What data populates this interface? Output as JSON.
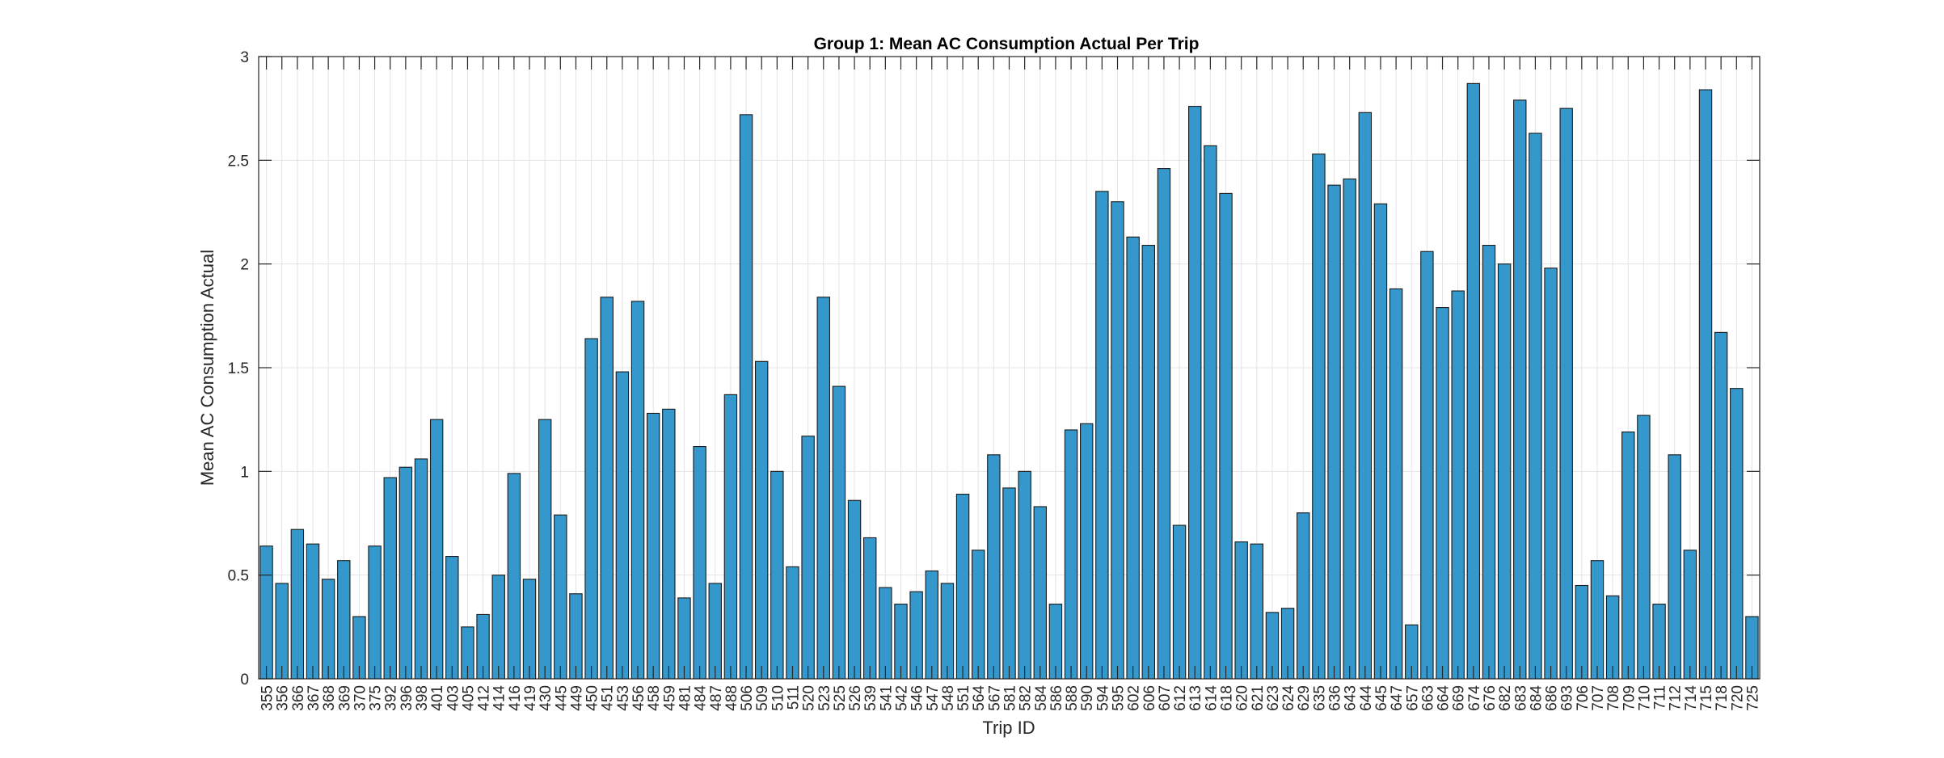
{
  "chart_data": {
    "type": "bar",
    "title": "Group 1: Mean AC Consumption Actual Per Trip",
    "xlabel": "Trip ID",
    "ylabel": "Mean AC Consumption Actual",
    "ylim": [
      0,
      3
    ],
    "yticks": [
      "0",
      "0.5",
      "1",
      "1.5",
      "2",
      "2.5",
      "3"
    ],
    "grid": true,
    "legend": "none",
    "colors": {
      "bar_fill": "#3498cd",
      "bar_edge": "#1a1a1a",
      "grid": "#e3e3e3",
      "axis": "#262626"
    },
    "categories": [
      "355",
      "356",
      "366",
      "367",
      "368",
      "369",
      "370",
      "375",
      "392",
      "396",
      "398",
      "401",
      "403",
      "405",
      "412",
      "414",
      "416",
      "419",
      "430",
      "445",
      "449",
      "450",
      "451",
      "453",
      "456",
      "458",
      "459",
      "481",
      "484",
      "487",
      "488",
      "506",
      "509",
      "510",
      "511",
      "520",
      "523",
      "525",
      "526",
      "539",
      "541",
      "542",
      "546",
      "547",
      "548",
      "551",
      "564",
      "567",
      "581",
      "582",
      "584",
      "586",
      "588",
      "590",
      "594",
      "595",
      "602",
      "606",
      "607",
      "612",
      "613",
      "614",
      "618",
      "620",
      "621",
      "623",
      "624",
      "629",
      "635",
      "636",
      "643",
      "644",
      "645",
      "647",
      "657",
      "663",
      "664",
      "669",
      "674",
      "676",
      "682",
      "683",
      "684",
      "686",
      "693",
      "706",
      "707",
      "708",
      "709",
      "710",
      "711",
      "712",
      "714",
      "715",
      "718",
      "720",
      "725"
    ],
    "values": [
      0.64,
      0.46,
      0.72,
      0.65,
      0.48,
      0.57,
      0.3,
      0.64,
      0.97,
      1.02,
      1.06,
      1.25,
      0.59,
      0.25,
      0.31,
      0.5,
      0.99,
      0.48,
      1.25,
      0.79,
      0.41,
      1.64,
      1.84,
      1.48,
      1.82,
      1.28,
      1.3,
      0.39,
      1.12,
      0.46,
      1.37,
      2.72,
      1.53,
      1.0,
      0.54,
      1.17,
      1.84,
      1.41,
      0.86,
      0.68,
      0.44,
      0.36,
      0.42,
      0.52,
      0.46,
      0.89,
      0.62,
      1.08,
      0.92,
      1.0,
      0.83,
      0.36,
      1.2,
      1.23,
      2.35,
      2.3,
      2.13,
      2.09,
      2.46,
      0.74,
      2.76,
      2.57,
      2.34,
      0.66,
      0.65,
      0.32,
      0.34,
      0.8,
      2.53,
      2.38,
      2.41,
      2.73,
      2.29,
      1.88,
      0.26,
      2.06,
      1.79,
      1.87,
      2.87,
      2.09,
      2.0,
      2.79,
      2.63,
      1.98,
      2.75,
      0.45,
      0.57,
      0.4,
      1.19,
      1.27,
      0.36,
      1.08,
      0.62,
      2.84,
      1.67,
      1.4,
      0.3
    ]
  }
}
